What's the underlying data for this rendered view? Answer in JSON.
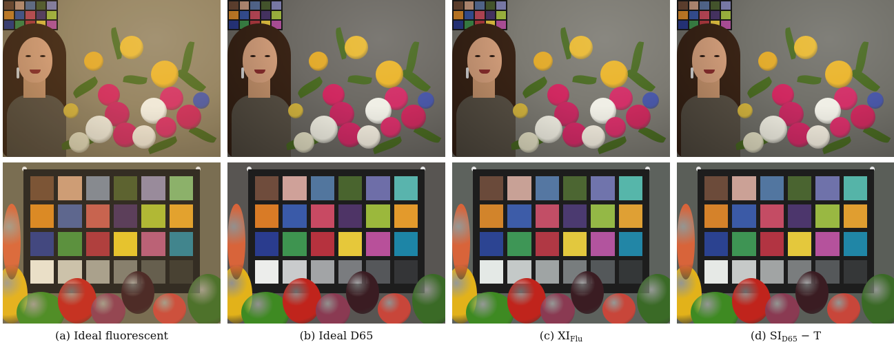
{
  "captions": [
    {
      "id": "a",
      "label": "(a) Ideal fluorescent",
      "main": "",
      "sub": "",
      "suffix": ""
    },
    {
      "id": "b",
      "label": "(b) Ideal D65",
      "main": "",
      "sub": "",
      "suffix": ""
    },
    {
      "id": "c",
      "label": "(c) ",
      "main": "XI",
      "sub": "Flu",
      "suffix": ""
    },
    {
      "id": "d",
      "label": "(d) ",
      "main": "SI",
      "sub": "D65",
      "suffix": " − T"
    }
  ],
  "palettes": {
    "a": {
      "wall": "#8e8266",
      "board": "#6b6652",
      "tint": "rgba(255,190,90,0.10)",
      "patches": [
        "#6e4a33",
        "#c99a79",
        "#7a8596",
        "#4b5a2c",
        "#8e86a3",
        "#7fb06c",
        "#d78520",
        "#4c5e95",
        "#c25b4f",
        "#4a325b",
        "#a9b832",
        "#e0a02a",
        "#2e3b84",
        "#4a8d3c",
        "#a8333b",
        "#e4c52a",
        "#b4587a",
        "#2c7f94",
        "#e8e4d4",
        "#c7c3b4",
        "#a19f92",
        "#7b7a70",
        "#55554d",
        "#35352f"
      ]
    },
    "b": {
      "wall": "#6d6a64",
      "board": "#585552",
      "tint": "rgba(0,0,0,0)",
      "patches": [
        "#6f4c3c",
        "#cfa199",
        "#52769e",
        "#49642e",
        "#6e6ea8",
        "#59b4ad",
        "#d97b26",
        "#3a5aa8",
        "#c84a63",
        "#4e3466",
        "#9bb83c",
        "#e39a2c",
        "#2a3c8e",
        "#3e9450",
        "#b6323e",
        "#e6c83a",
        "#b8509a",
        "#1d85a6",
        "#ecedeb",
        "#c9cbcc",
        "#a2a4a6",
        "#7a7c7f",
        "#55575a",
        "#343537"
      ]
    },
    "c": {
      "wall": "#7c7a72",
      "board": "#5d625d",
      "tint": "rgba(0,0,0,0)",
      "patches": [
        "#6a4a3a",
        "#c8a196",
        "#5577a2",
        "#4c6632",
        "#7074ac",
        "#56b6aa",
        "#d2842b",
        "#3d5ca8",
        "#c24e66",
        "#4b3a70",
        "#94b846",
        "#dfa034",
        "#2c4492",
        "#3e9656",
        "#b03844",
        "#e2c83e",
        "#b2549e",
        "#2286a6",
        "#e4e9e6",
        "#c4c9c8",
        "#9fa4a4",
        "#787d7e",
        "#54585a",
        "#343738"
      ]
    },
    "d": {
      "wall": "#72716a",
      "board": "#5a5e58",
      "tint": "rgba(0,0,0,0)",
      "patches": [
        "#6c4b3a",
        "#cba196",
        "#5276a0",
        "#4a6430",
        "#6f72aa",
        "#55b4a8",
        "#d5822a",
        "#3b5aa6",
        "#c44c64",
        "#4c366c",
        "#99b842",
        "#e09e30",
        "#2b4290",
        "#3e9454",
        "#b23442",
        "#e4c83c",
        "#b5529c",
        "#2086a6",
        "#e6e9e6",
        "#c6c9c8",
        "#a1a4a4",
        "#7a7d7e",
        "#55585a",
        "#353738"
      ]
    }
  }
}
